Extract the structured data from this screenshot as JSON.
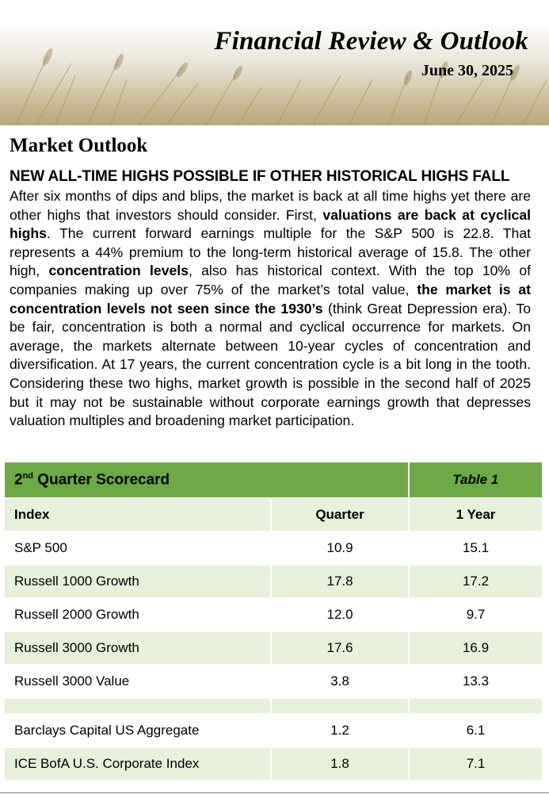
{
  "header": {
    "title": "Financial Review & Outlook",
    "date": "June 30, 2025"
  },
  "section": {
    "heading": "Market Outlook",
    "subheading": "NEW ALL-TIME HIGHS POSSIBLE IF OTHER HISTORICAL HIGHS FALL",
    "p1": "After six months of dips and blips, the market is back at all time highs yet there are other highs that investors should consider.  First, ",
    "b1": "valuations are back at cyclical highs",
    "p2": ".  The current forward earnings multiple for the S&P 500 is 22.8.  That represents a 44% premium to the long-term historical average of 15.8.  The other high, ",
    "b2": "concentration levels",
    "p3": ", also has historical context.  With the top 10% of companies making up over 75% of the market’s total value, ",
    "b3": "the market is at concentration levels not seen since the 1930’s",
    "p4": " (think Great Depression era).  To be fair, concentration is both a normal and cyclical occurrence for markets.  On average, the markets alternate between 10-year cycles of concentration and diversification.  At 17 years, the current concentration cycle is a bit long in the tooth.  Considering these two highs, market growth is possible in the second half of 2025 but it may not be sustainable without corporate earnings growth that depresses valuation multiples and broadening market participation."
  },
  "scorecard": {
    "title_prefix": "2",
    "title_sup": "nd",
    "title_rest": " Quarter Scorecard",
    "table_label": "Table 1",
    "columns": [
      "Index",
      "Quarter",
      "1 Year"
    ],
    "rows": [
      {
        "index": "S&P 500",
        "quarter": "10.9",
        "year": "15.1"
      },
      {
        "index": "Russell 1000 Growth",
        "quarter": "17.8",
        "year": "17.2"
      },
      {
        "index": "Russell 2000 Growth",
        "quarter": "12.0",
        "year": "9.7"
      },
      {
        "index": "Russell 3000 Growth",
        "quarter": "17.6",
        "year": "16.9"
      },
      {
        "index": "Russell 3000 Value",
        "quarter": "3.8",
        "year": "13.3"
      }
    ],
    "bond_rows": [
      {
        "index": "Barclays Capital US Aggregate",
        "quarter": "1.2",
        "year": "6.1"
      },
      {
        "index": "ICE BofA U.S. Corporate Index",
        "quarter": "1.8",
        "year": "7.1"
      }
    ]
  },
  "colors": {
    "header_green": "#6daa45",
    "row_tint": "#e7f0d9"
  }
}
